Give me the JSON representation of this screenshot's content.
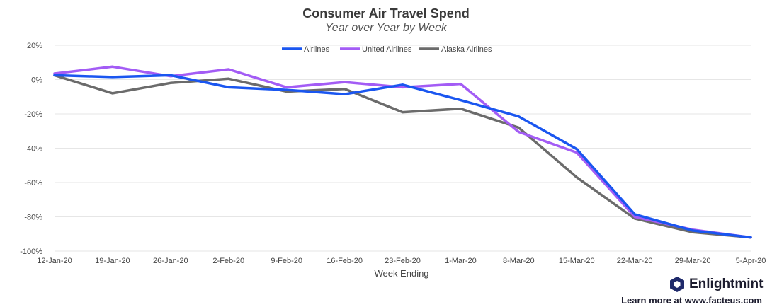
{
  "chart_data": {
    "type": "line",
    "title": "Consumer Air Travel Spend",
    "subtitle": "Year over Year by Week",
    "xlabel": "Week Ending",
    "ylabel": "",
    "ylim": [
      -100,
      20
    ],
    "yticks": [
      20,
      0,
      -20,
      -40,
      -60,
      -80,
      -100
    ],
    "ytick_labels": [
      "20%",
      "0%",
      "-20%",
      "-40%",
      "-60%",
      "-80%",
      "-100%"
    ],
    "categories": [
      "12-Jan-20",
      "19-Jan-20",
      "26-Jan-20",
      "2-Feb-20",
      "9-Feb-20",
      "16-Feb-20",
      "23-Feb-20",
      "1-Mar-20",
      "8-Mar-20",
      "15-Mar-20",
      "22-Mar-20",
      "29-Mar-20",
      "5-Apr-20"
    ],
    "grid": true,
    "legend_position": "top-center",
    "series": [
      {
        "name": "Airlines",
        "color": "#1a56f0",
        "values": [
          2.5,
          1.5,
          2.5,
          -4.5,
          -6.0,
          -8.5,
          -3.0,
          -12.0,
          -21.5,
          -40.5,
          -78.5,
          -88.0,
          -92.0
        ]
      },
      {
        "name": "United Airlines",
        "color": "#a35cf5",
        "values": [
          3.5,
          7.5,
          2.0,
          6.0,
          -4.5,
          -1.5,
          -4.5,
          -2.5,
          -30.5,
          -42.5,
          -80.0,
          -87.5,
          -92.0
        ]
      },
      {
        "name": "Alaska Airlines",
        "color": "#6b6b6b",
        "values": [
          2.5,
          -8.0,
          -2.0,
          0.5,
          -7.0,
          -5.5,
          -19.0,
          -17.0,
          -28.0,
          -57.0,
          -81.0,
          -89.0,
          -92.0
        ]
      }
    ]
  },
  "brand": {
    "name": "Enlightmint",
    "footer": "Learn more at www.facteus.com",
    "logo_color": "#1f2a6b"
  }
}
